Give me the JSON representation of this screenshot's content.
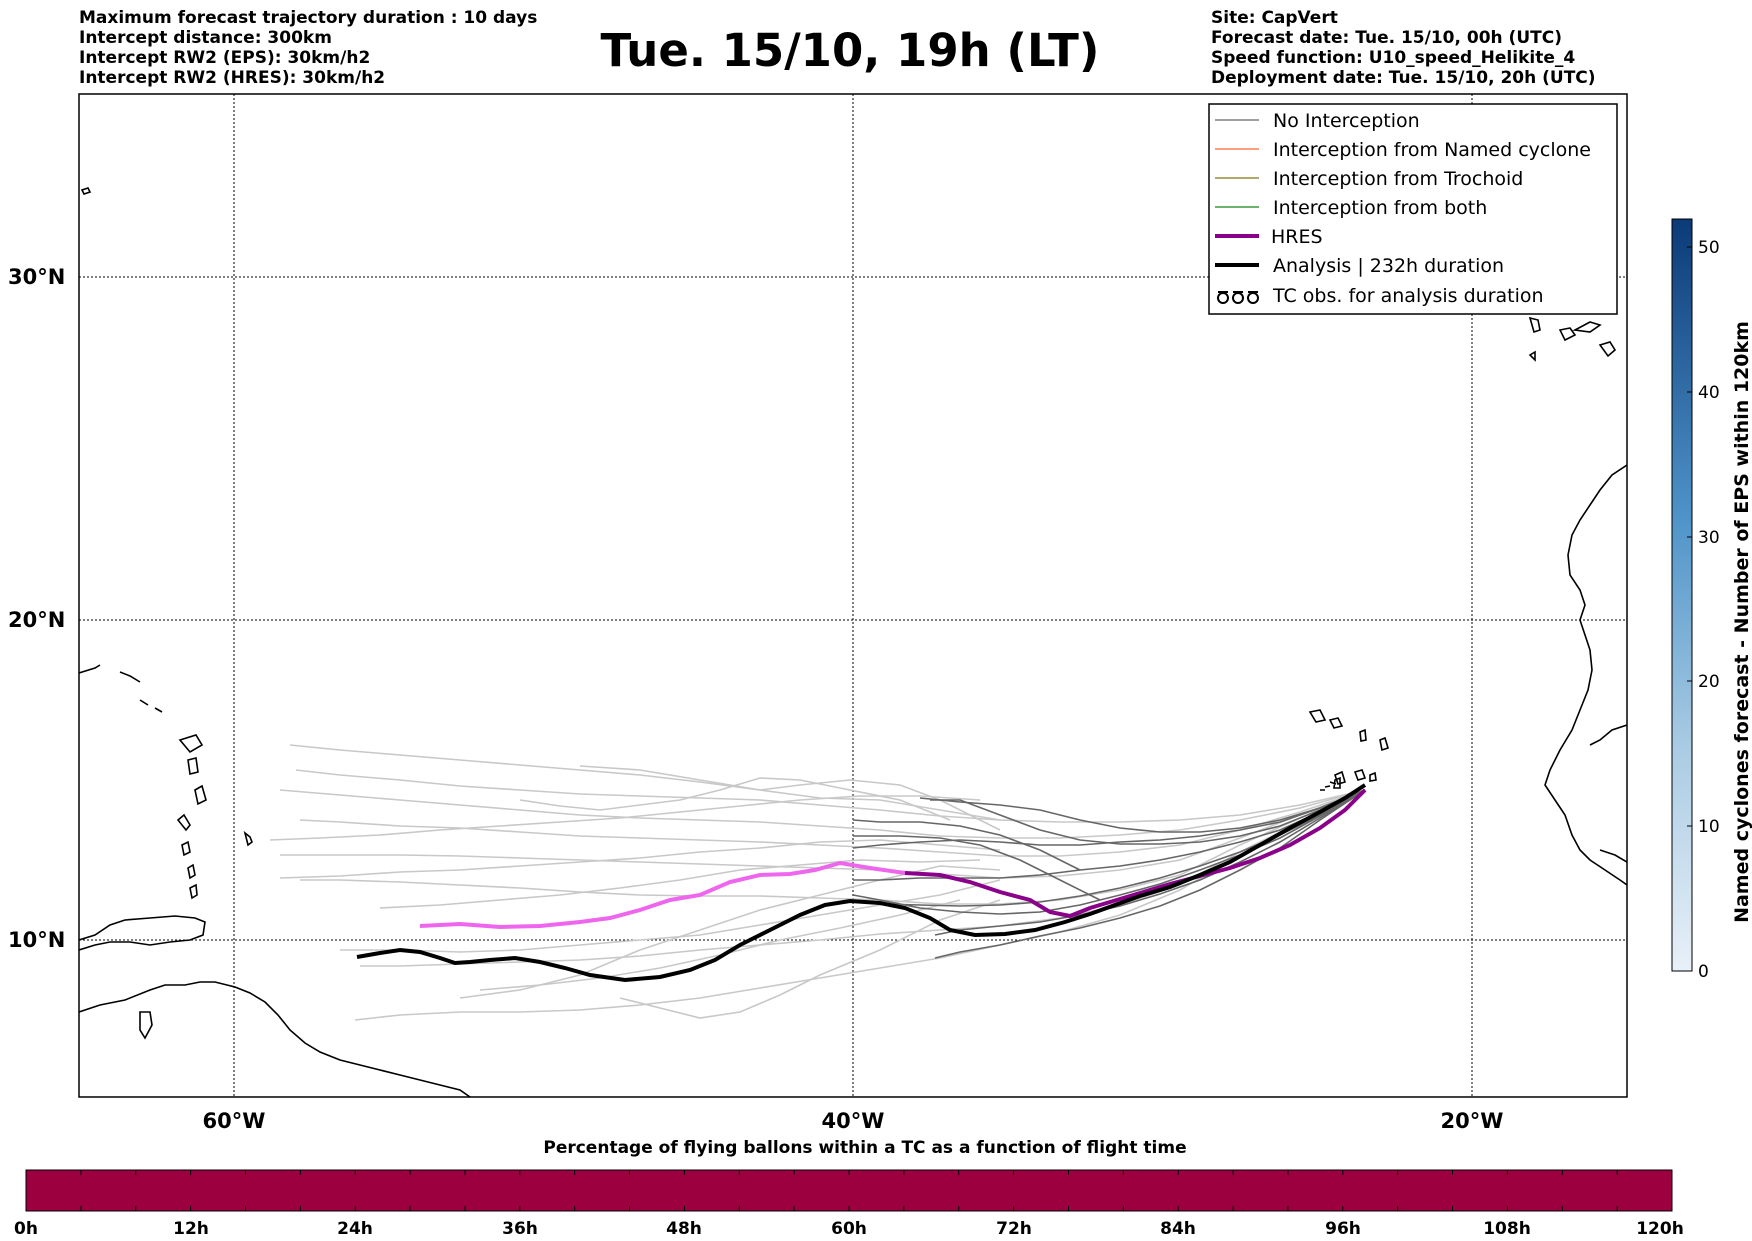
{
  "header": {
    "left_lines": [
      "Maximum forecast trajectory duration : 10 days",
      "Intercept distance: 300km",
      "Intercept RW2 (EPS):  30km/h2",
      "Intercept RW2 (HRES): 30km/h2"
    ],
    "title": "Tue. 15/10, 19h (LT)",
    "right_lines": [
      "Site: CapVert",
      "Forecast date: Tue. 15/10, 00h (UTC)",
      "Speed function: U10_speed_Helikite_4",
      "Deployment date: Tue. 15/10, 20h (UTC)"
    ]
  },
  "map": {
    "lat_labels": [
      "30°N",
      "20°N",
      "10°N"
    ],
    "lon_labels": [
      "60°W",
      "40°W",
      "20°W"
    ],
    "grid": true
  },
  "legend": {
    "items": [
      {
        "label": "No Interception",
        "color": "#808080",
        "style": "thin"
      },
      {
        "label": "Interception from Named cyclone",
        "color": "#ff7f50",
        "style": "thin"
      },
      {
        "label": "Interception from Trochoid",
        "color": "#9a8c3a",
        "style": "thin"
      },
      {
        "label": "Interception from both",
        "color": "#3a9a3a",
        "style": "thin"
      },
      {
        "label": "HRES",
        "color": "#8b008b",
        "style": "thick"
      },
      {
        "label": "Analysis | 232h duration",
        "color": "#000000",
        "style": "thick"
      },
      {
        "label": "TC obs. for analysis duration",
        "color": "#000000",
        "style": "tc-symbol"
      }
    ]
  },
  "colorbar_right": {
    "label": "Named cyclones forecast - Number of EPS within 120km",
    "ticks": [
      "0",
      "10",
      "20",
      "30",
      "40",
      "50"
    ],
    "color_low": "#e3edf7",
    "color_high": "#0c3a78"
  },
  "colorbar_bottom": {
    "title": "Percentage of flying ballons within a TC as a function of flight time",
    "ticks": [
      "0h",
      "12h",
      "24h",
      "36h",
      "48h",
      "60h",
      "72h",
      "84h",
      "96h",
      "108h",
      "120h"
    ],
    "color": "#9c003f"
  },
  "colors": {
    "eps_light": "#c8c8c8",
    "eps_dark": "#666666",
    "hres": "#8b008b",
    "hres_light": "#ee66ee",
    "analysis": "#000000"
  }
}
